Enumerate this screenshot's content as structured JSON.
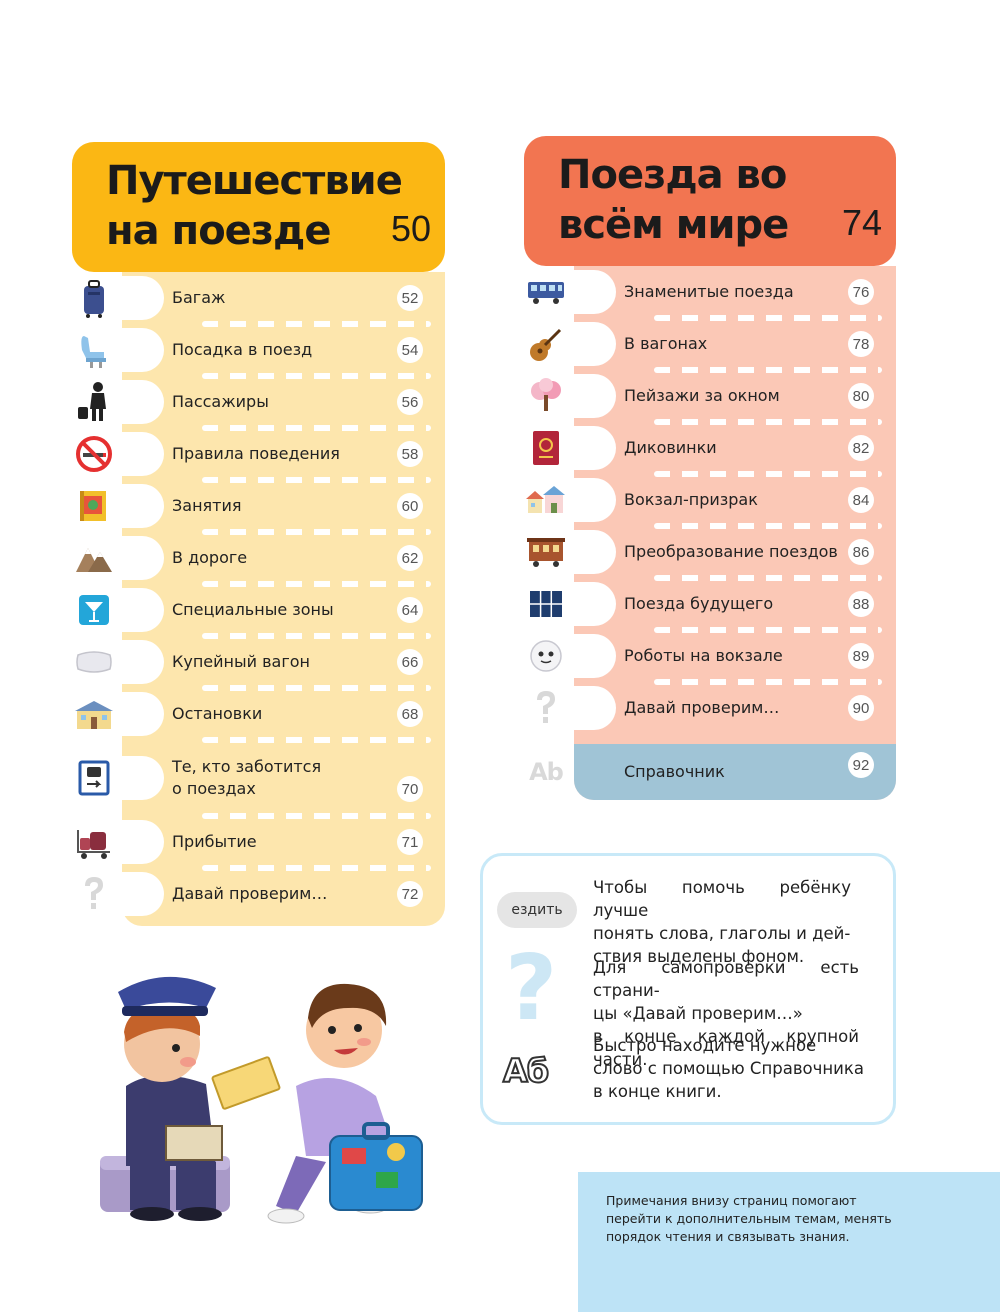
{
  "left_section": {
    "title": "Путешествие\nна поезде",
    "page": "50",
    "color": "#fbb714",
    "items": [
      {
        "label": "Багаж",
        "page": "52",
        "icon": "suitcase-icon"
      },
      {
        "label": "Посадка в поезд",
        "page": "54",
        "icon": "seat-icon"
      },
      {
        "label": "Пассажиры",
        "page": "56",
        "icon": "passenger-icon"
      },
      {
        "label": "Правила поведения",
        "page": "58",
        "icon": "no-smoking-icon"
      },
      {
        "label": "Занятия",
        "page": "60",
        "icon": "book-icon"
      },
      {
        "label": "В дороге",
        "page": "62",
        "icon": "mountains-icon"
      },
      {
        "label": "Специальные зоны",
        "page": "64",
        "icon": "cocktail-icon"
      },
      {
        "label": "Купейный вагон",
        "page": "66",
        "icon": "pillow-icon"
      },
      {
        "label": "Остановки",
        "page": "68",
        "icon": "station-building-icon"
      },
      {
        "label": "Те, кто заботится\nо поездах",
        "page": "70",
        "icon": "train-sign-icon"
      },
      {
        "label": "Прибытие",
        "page": "71",
        "icon": "luggage-cart-icon"
      },
      {
        "label": "Давай проверим…",
        "page": "72",
        "icon": "question-icon"
      }
    ]
  },
  "right_section": {
    "title": "Поезда во\nвсём мире",
    "page": "74",
    "color": "#f27551",
    "items": [
      {
        "label": "Знаменитые поезда",
        "page": "76",
        "icon": "train-car-icon"
      },
      {
        "label": "В вагонах",
        "page": "78",
        "icon": "guitar-icon"
      },
      {
        "label": "Пейзажи за окном",
        "page": "80",
        "icon": "sakura-tree-icon"
      },
      {
        "label": "Диковинки",
        "page": "82",
        "icon": "passport-icon"
      },
      {
        "label": "Вокзал-призрак",
        "page": "84",
        "icon": "village-icon"
      },
      {
        "label": "Преобразование поездов",
        "page": "86",
        "icon": "wagon-icon"
      },
      {
        "label": "Поезда будущего",
        "page": "88",
        "icon": "solar-panel-icon"
      },
      {
        "label": "Роботы на вокзале",
        "page": "89",
        "icon": "robot-icon"
      },
      {
        "label": "Давай проверим…",
        "page": "90",
        "icon": "question-icon"
      }
    ],
    "reference": {
      "label": "Справочник",
      "page": "92",
      "icon_text": "Ab"
    }
  },
  "info_box": {
    "demo_word": "ездить",
    "demo_glossary": "Аб",
    "text1": "Чтобы помочь ребёнку лучше\nпонять слова, глаголы и дей-\nствия выделены фоном.",
    "text2": "Для самопроверки есть страни-\nцы «Давай проверим…»\nв конце каждой крупной части.",
    "text3": "Быстро находите нужное\nслово с помощью Справочника\nв конце книги."
  },
  "note": {
    "text": "Примечания внизу страниц помогают\nперейти к дополнительным темам, менять\nпорядок чтения и связывать знания."
  }
}
